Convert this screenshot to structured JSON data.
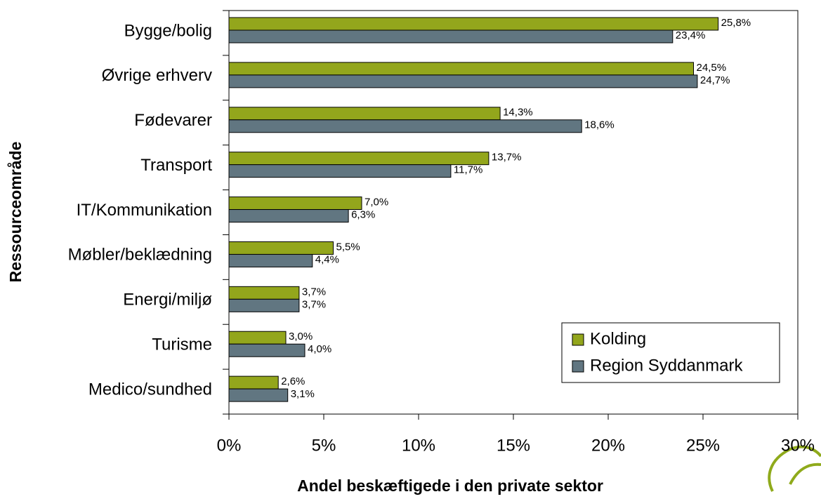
{
  "chart_data": {
    "type": "bar",
    "orientation": "horizontal",
    "x_axis_label": "Andel beskæftigede i den private sektor",
    "y_axis_label": "Ressourceområde",
    "categories": [
      "Bygge/bolig",
      "Øvrige erhverv",
      "Fødevarer",
      "Transport",
      "IT/Kommunikation",
      "Møbler/beklædning",
      "Energi/miljø",
      "Turisme",
      "Medico/sundhed"
    ],
    "series": [
      {
        "name": "Kolding",
        "color": "#93a61c",
        "values": [
          25.8,
          24.5,
          14.3,
          13.7,
          7.0,
          5.5,
          3.7,
          3.0,
          2.6
        ],
        "value_labels": [
          "25,8%",
          "24,5%",
          "14,3%",
          "13,7%",
          "7,0%",
          "5,5%",
          "3,7%",
          "3,0%",
          "2,6%"
        ]
      },
      {
        "name": "Region Syddanmark",
        "color": "#617681",
        "values": [
          23.4,
          24.7,
          18.6,
          11.7,
          6.3,
          4.4,
          3.7,
          4.0,
          3.1
        ],
        "value_labels": [
          "23,4%",
          "24,7%",
          "18,6%",
          "11,7%",
          "6,3%",
          "4,4%",
          "3,7%",
          "4,0%",
          "3,1%"
        ]
      }
    ],
    "xlim": [
      0,
      30
    ],
    "xticks": [
      {
        "value": 0,
        "label": "0%"
      },
      {
        "value": 5,
        "label": "5%"
      },
      {
        "value": 10,
        "label": "10%"
      },
      {
        "value": 15,
        "label": "15%"
      },
      {
        "value": 20,
        "label": "20%"
      },
      {
        "value": 25,
        "label": "25%"
      },
      {
        "value": 30,
        "label": "30%"
      }
    ],
    "legend": "lower right",
    "grid": false
  }
}
